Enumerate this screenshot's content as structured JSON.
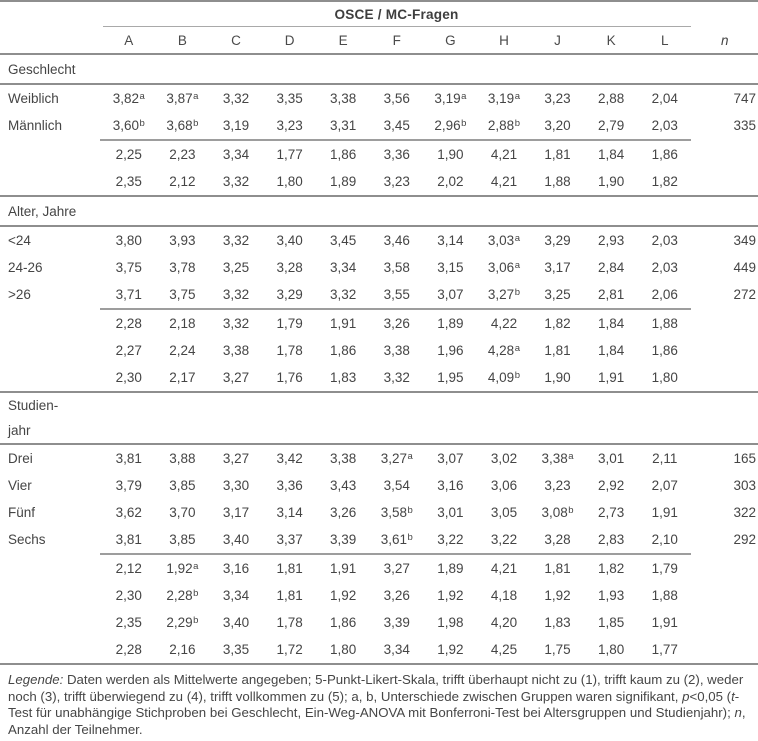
{
  "title": "OSCE / MC-Fragen",
  "columns": [
    "A",
    "B",
    "C",
    "D",
    "E",
    "F",
    "G",
    "H",
    "J",
    "K",
    "L"
  ],
  "n_header": "n",
  "colors": {
    "text": "#454545",
    "rule_strong": "#8e8e8e",
    "rule_light": "#a9a9a9"
  },
  "sections": [
    {
      "label_lines": [
        "Geschlecht"
      ],
      "group_rows": [
        {
          "label": "Weiblich",
          "cells": [
            "3,82^a",
            "3,87^a",
            "3,32",
            "3,35",
            "3,38",
            "3,56",
            "3,19^a",
            "3,19^a",
            "3,23",
            "2,88",
            "2,04"
          ],
          "n": "747"
        },
        {
          "label": "Männlich",
          "cells": [
            "3,60^b",
            "3,68^b",
            "3,19",
            "3,23",
            "3,31",
            "3,45",
            "2,96^b",
            "2,88^b",
            "3,20",
            "2,79",
            "2,03"
          ],
          "n": "335"
        }
      ],
      "mc_rows": [
        {
          "cells": [
            "2,25",
            "2,23",
            "3,34",
            "1,77",
            "1,86",
            "3,36",
            "1,90",
            "4,21",
            "1,81",
            "1,84",
            "1,86"
          ]
        },
        {
          "cells": [
            "2,35",
            "2,12",
            "3,32",
            "1,80",
            "1,89",
            "3,23",
            "2,02",
            "4,21",
            "1,88",
            "1,90",
            "1,82"
          ]
        }
      ]
    },
    {
      "label_lines": [
        "Alter, Jahre"
      ],
      "group_rows": [
        {
          "label": "<24",
          "cells": [
            "3,80",
            "3,93",
            "3,32",
            "3,40",
            "3,45",
            "3,46",
            "3,14",
            "3,03^a",
            "3,29",
            "2,93",
            "2,03"
          ],
          "n": "349"
        },
        {
          "label": "24-26",
          "cells": [
            "3,75",
            "3,78",
            "3,25",
            "3,28",
            "3,34",
            "3,58",
            "3,15",
            "3,06^a",
            "3,17",
            "2,84",
            "2,03"
          ],
          "n": "449"
        },
        {
          "label": ">26",
          "cells": [
            "3,71",
            "3,75",
            "3,32",
            "3,29",
            "3,32",
            "3,55",
            "3,07",
            "3,27^b",
            "3,25",
            "2,81",
            "2,06"
          ],
          "n": "272"
        }
      ],
      "mc_rows": [
        {
          "cells": [
            "2,28",
            "2,18",
            "3,32",
            "1,79",
            "1,91",
            "3,26",
            "1,89",
            "4,22",
            "1,82",
            "1,84",
            "1,88"
          ]
        },
        {
          "cells": [
            "2,27",
            "2,24",
            "3,38",
            "1,78",
            "1,86",
            "3,38",
            "1,96",
            "4,28^a",
            "1,81",
            "1,84",
            "1,86"
          ]
        },
        {
          "cells": [
            "2,30",
            "2,17",
            "3,27",
            "1,76",
            "1,83",
            "3,32",
            "1,95",
            "4,09^b",
            "1,90",
            "1,91",
            "1,80"
          ]
        }
      ]
    },
    {
      "label_lines": [
        "Studien-",
        "jahr"
      ],
      "group_rows": [
        {
          "label": "Drei",
          "cells": [
            "3,81",
            "3,88",
            "3,27",
            "3,42",
            "3,38",
            "3,27^a",
            "3,07",
            "3,02",
            "3,38^a",
            "3,01",
            "2,11"
          ],
          "n": "165"
        },
        {
          "label": "Vier",
          "cells": [
            "3,79",
            "3,85",
            "3,30",
            "3,36",
            "3,43",
            "3,54",
            "3,16",
            "3,06",
            "3,23",
            "2,92",
            "2,07"
          ],
          "n": "303"
        },
        {
          "label": "Fünf",
          "cells": [
            "3,62",
            "3,70",
            "3,17",
            "3,14",
            "3,26",
            "3,58^b",
            "3,01",
            "3,05",
            "3,08^b",
            "2,73",
            "1,91"
          ],
          "n": "322"
        },
        {
          "label": "Sechs",
          "cells": [
            "3,81",
            "3,85",
            "3,40",
            "3,37",
            "3,39",
            "3,61^b",
            "3,22",
            "3,22",
            "3,28",
            "2,83",
            "2,10"
          ],
          "n": "292"
        }
      ],
      "mc_rows": [
        {
          "cells": [
            "2,12",
            "1,92^a",
            "3,16",
            "1,81",
            "1,91",
            "3,27",
            "1,89",
            "4,21",
            "1,81",
            "1,82",
            "1,79"
          ]
        },
        {
          "cells": [
            "2,30",
            "2,28^b",
            "3,34",
            "1,81",
            "1,92",
            "3,26",
            "1,92",
            "4,18",
            "1,92",
            "1,93",
            "1,88"
          ]
        },
        {
          "cells": [
            "2,35",
            "2,29^b",
            "3,40",
            "1,78",
            "1,86",
            "3,39",
            "1,98",
            "4,20",
            "1,83",
            "1,85",
            "1,91"
          ]
        },
        {
          "cells": [
            "2,28",
            "2,16",
            "3,35",
            "1,72",
            "1,80",
            "3,34",
            "1,92",
            "4,25",
            "1,75",
            "1,80",
            "1,77"
          ]
        }
      ]
    }
  ],
  "legend_segments": [
    {
      "t": "Legende:",
      "i": true
    },
    {
      "t": " Daten werden als Mittelwerte angegeben; 5-Punkt-Likert-Skala, trifft überhaupt nicht zu (1), trifft kaum zu (2), weder noch (3), trifft überwiegend zu (4), trifft vollkommen zu (5); a, b, Unterschiede zwischen Gruppen waren signifikant, "
    },
    {
      "t": "p",
      "i": true
    },
    {
      "t": "<0,05 ("
    },
    {
      "t": "t",
      "i": true
    },
    {
      "t": "-Test für unabhängige Stichproben bei Geschlecht, Ein-Weg-ANOVA mit Bonferroni-Test bei Altersgruppen und Studienjahr); "
    },
    {
      "t": "n",
      "i": true
    },
    {
      "t": ", Anzahl der Teilnehmer."
    }
  ]
}
